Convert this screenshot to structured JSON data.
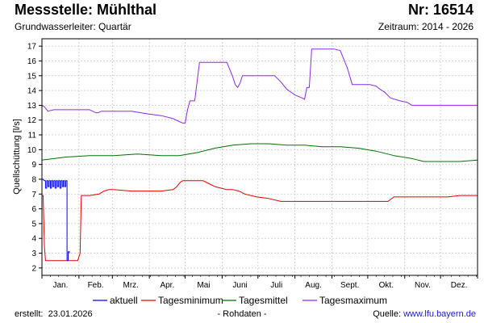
{
  "header": {
    "title": "Messstelle: Mühlthal",
    "number": "Nr: 16514",
    "aquifer": "Grundwasserleiter: Quartär",
    "period": "Zeitraum: 2014 - 2026"
  },
  "footer": {
    "created_label": "erstellt:",
    "created_date": "23.01.2026",
    "rawdata": "- Rohdaten -",
    "source_label": "Quelle:",
    "source_link": "www.lfu.bayern.de"
  },
  "colors": {
    "aktuell": "#0000ff",
    "tagesminimum": "#e00000",
    "tagesmittel": "#007000",
    "tagesmaximum": "#8a2be2",
    "grid": "#c8c8c8"
  },
  "chart_data": {
    "type": "line",
    "title": "",
    "xlabel": "",
    "ylabel": "Quellschüttung [l/s]",
    "x_unit": "day of year",
    "xlim": [
      0,
      365
    ],
    "ylim": [
      1.5,
      17.5
    ],
    "yticks": [
      2,
      3,
      4,
      5,
      6,
      7,
      8,
      9,
      10,
      11,
      12,
      13,
      14,
      15,
      16,
      17
    ],
    "month_labels": [
      "Jan.",
      "Feb.",
      "Mrz.",
      "Apr.",
      "Mai",
      "Juni",
      "Juli",
      "Aug.",
      "Sept.",
      "Okt.",
      "Nov.",
      "Dez."
    ],
    "grid": true,
    "legend_position": "bottom",
    "series": [
      {
        "name": "aktuell",
        "key": "aktuell",
        "x": [
          0,
          1,
          2,
          3,
          3,
          4,
          4,
          5,
          5,
          6,
          6,
          7,
          7,
          8,
          8,
          9,
          9,
          10,
          10,
          11,
          11,
          12,
          12,
          13,
          13,
          14,
          14,
          15,
          15,
          16,
          16,
          17,
          17,
          18,
          18,
          19,
          19,
          20,
          20,
          21,
          21,
          22,
          22,
          23,
          23
        ],
        "y": [
          8.0,
          8.0,
          7.9,
          7.9,
          7.4,
          7.4,
          7.9,
          7.9,
          7.5,
          7.5,
          7.9,
          7.9,
          7.4,
          7.4,
          7.9,
          7.9,
          7.5,
          7.5,
          7.9,
          7.9,
          7.4,
          7.4,
          7.9,
          7.9,
          7.5,
          7.5,
          7.9,
          7.9,
          7.4,
          7.4,
          7.9,
          7.9,
          7.5,
          7.5,
          7.9,
          7.9,
          7.5,
          7.5,
          7.9,
          7.9,
          2.5,
          2.5,
          3.1,
          3.1,
          3.0
        ]
      },
      {
        "name": "Tagesminimum",
        "key": "tagesminimum",
        "x": [
          0,
          1,
          2,
          3,
          4,
          20,
          30,
          32,
          33,
          34,
          40,
          48,
          52,
          56,
          60,
          75,
          90,
          100,
          110,
          113,
          116,
          118,
          120,
          135,
          140,
          145,
          150,
          155,
          160,
          165,
          170,
          180,
          190,
          200,
          220,
          240,
          260,
          280,
          290,
          295,
          300,
          310,
          320,
          340,
          350,
          365
        ],
        "y": [
          6.9,
          6.9,
          3.5,
          2.5,
          2.5,
          2.5,
          2.5,
          3.0,
          6.9,
          6.9,
          6.9,
          7.0,
          7.2,
          7.3,
          7.3,
          7.2,
          7.2,
          7.2,
          7.3,
          7.5,
          7.8,
          7.9,
          7.9,
          7.9,
          7.7,
          7.5,
          7.4,
          7.3,
          7.3,
          7.2,
          7.0,
          6.8,
          6.7,
          6.5,
          6.5,
          6.5,
          6.5,
          6.5,
          6.5,
          6.8,
          6.8,
          6.8,
          6.8,
          6.8,
          6.9,
          6.9
        ],
        "comment": ""
      },
      {
        "name": "Tagesmittel",
        "key": "tagesmittel",
        "x": [
          0,
          20,
          40,
          60,
          80,
          100,
          115,
          130,
          145,
          160,
          175,
          190,
          205,
          220,
          235,
          250,
          265,
          280,
          295,
          310,
          320,
          335,
          350,
          365
        ],
        "y": [
          9.3,
          9.5,
          9.6,
          9.6,
          9.7,
          9.6,
          9.6,
          9.8,
          10.1,
          10.3,
          10.4,
          10.4,
          10.3,
          10.3,
          10.2,
          10.2,
          10.1,
          9.9,
          9.6,
          9.4,
          9.2,
          9.2,
          9.2,
          9.3
        ]
      },
      {
        "name": "Tagesmaximum",
        "key": "tagesmaximum",
        "x": [
          0,
          2,
          5,
          10,
          20,
          40,
          45,
          47,
          50,
          60,
          75,
          90,
          100,
          110,
          115,
          118,
          120,
          122,
          124,
          126,
          128,
          132,
          140,
          150,
          155,
          158,
          160,
          162,
          164,
          166,
          168,
          175,
          190,
          195,
          200,
          205,
          212,
          218,
          220,
          222,
          224,
          226,
          240,
          245,
          250,
          252,
          256,
          260,
          265,
          275,
          280,
          283,
          287,
          292,
          300,
          306,
          310,
          320,
          340,
          365
        ],
        "y": [
          13.0,
          12.9,
          12.6,
          12.7,
          12.7,
          12.7,
          12.5,
          12.5,
          12.6,
          12.6,
          12.6,
          12.4,
          12.3,
          12.1,
          11.9,
          11.8,
          11.8,
          12.7,
          13.3,
          13.3,
          13.3,
          15.9,
          15.9,
          15.9,
          15.9,
          15.3,
          14.9,
          14.4,
          14.2,
          14.5,
          15.0,
          15.0,
          15.0,
          15.0,
          14.6,
          14.1,
          13.7,
          13.5,
          13.4,
          14.2,
          14.2,
          16.8,
          16.8,
          16.8,
          16.7,
          16.3,
          15.5,
          14.4,
          14.4,
          14.4,
          14.3,
          14.1,
          13.9,
          13.5,
          13.3,
          13.2,
          13.0,
          13.0,
          13.0,
          13.0
        ]
      }
    ]
  }
}
